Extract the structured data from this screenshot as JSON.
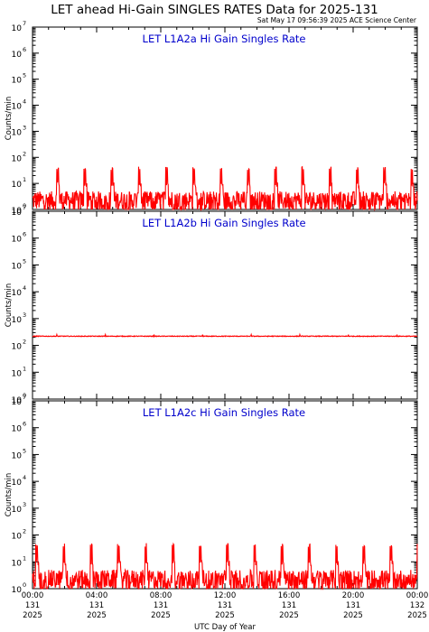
{
  "header": {
    "title": "LET ahead Hi-Gain SINGLES RATES Data for 2025-131",
    "timestamp": "Sat May 17 09:56:39 2025 ACE Science Center"
  },
  "colors": {
    "trace": "#ff0000",
    "panel_title": "#0000cc",
    "axes": "#000000"
  },
  "chart_data": [
    {
      "type": "line",
      "title": "LET L1A2a Hi Gain Singles Rate",
      "ylabel": "Counts/min",
      "yscale": "log",
      "ylim": [
        1,
        10000000
      ],
      "xlim": [
        "2025-131 00:00",
        "2025-132 00:00"
      ],
      "series": [
        {
          "baseline_range": [
            1,
            5
          ],
          "periodic_peak": 40,
          "peak_interval_hours": 1.7
        }
      ]
    },
    {
      "type": "line",
      "title": "LET L1A2b Hi Gain Singles Rate",
      "ylabel": "Counts/min",
      "yscale": "log",
      "ylim": [
        1,
        10000000
      ],
      "xlim": [
        "2025-131 00:00",
        "2025-132 00:00"
      ],
      "series": [
        {
          "level": 220
        }
      ]
    },
    {
      "type": "line",
      "title": "LET L1A2c Hi Gain Singles Rate",
      "ylabel": "Counts/min",
      "yscale": "log",
      "ylim": [
        1,
        10000000
      ],
      "xlim": [
        "2025-131 00:00",
        "2025-132 00:00"
      ],
      "series": [
        {
          "baseline_range": [
            1,
            5
          ],
          "periodic_peak": 45,
          "peak_interval_hours": 1.7
        }
      ]
    }
  ],
  "y_tick_labels": [
    {
      "base": "10",
      "exp": "0"
    },
    {
      "base": "10",
      "exp": "1"
    },
    {
      "base": "10",
      "exp": "2"
    },
    {
      "base": "10",
      "exp": "3"
    },
    {
      "base": "10",
      "exp": "4"
    },
    {
      "base": "10",
      "exp": "5"
    },
    {
      "base": "10",
      "exp": "6"
    },
    {
      "base": "10",
      "exp": "7"
    }
  ],
  "x_tick_labels": [
    {
      "time": "00:00",
      "day": "131",
      "year": "2025"
    },
    {
      "time": "04:00",
      "day": "131",
      "year": "2025"
    },
    {
      "time": "08:00",
      "day": "131",
      "year": "2025"
    },
    {
      "time": "12:00",
      "day": "131",
      "year": "2025"
    },
    {
      "time": "16:00",
      "day": "131",
      "year": "2025"
    },
    {
      "time": "20:00",
      "day": "131",
      "year": "2025"
    },
    {
      "time": "00:00",
      "day": "132",
      "year": "2025"
    }
  ],
  "xlabel": "UTC Day of Year"
}
